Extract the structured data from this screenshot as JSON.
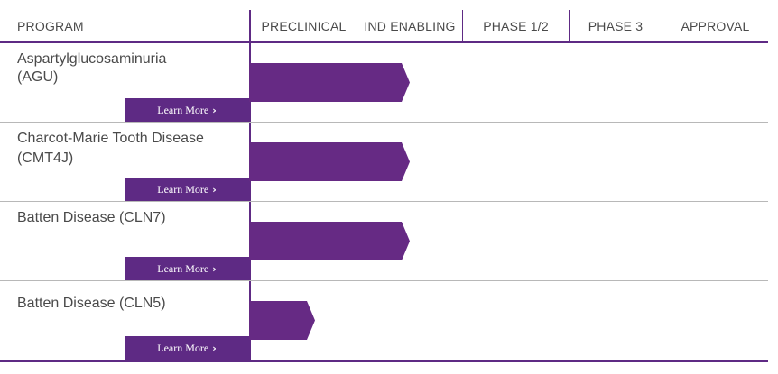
{
  "header": {
    "program": "PROGRAM",
    "phases": [
      "PRECLINICAL",
      "IND ENABLING",
      "PHASE 1/2",
      "PHASE 3",
      "APPROVAL"
    ]
  },
  "rows": [
    {
      "name": "Aspartylglucosaminuria\n(AGU)",
      "learn_more": "Learn More",
      "stage": "IND ENABLING",
      "progress": 1.0
    },
    {
      "name": "Charcot-Marie Tooth Disease\n(CMT4J)",
      "learn_more": "Learn More",
      "stage": "IND ENABLING",
      "progress": 1.0
    },
    {
      "name": "Batten Disease (CLN7)",
      "learn_more": "Learn More",
      "stage": "IND ENABLING",
      "progress": 1.0
    },
    {
      "name": "Batten Disease (CLN5)",
      "learn_more": "Learn More",
      "stage": "PRECLINICAL",
      "progress": 0.6
    }
  ],
  "icons": {
    "learn_more_arrow": "chevron-right-icon"
  },
  "colors": {
    "accent": "#5e2a84",
    "bar": "#662a84",
    "separator": "#b8b8b8",
    "text": "#4a4a4a"
  }
}
